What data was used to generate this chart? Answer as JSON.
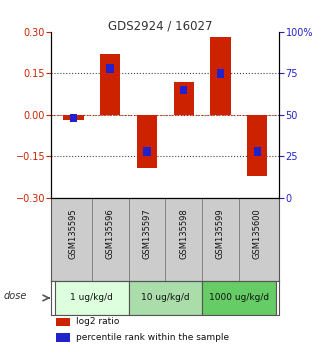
{
  "title": "GDS2924 / 16027",
  "samples": [
    "GSM135595",
    "GSM135596",
    "GSM135597",
    "GSM135598",
    "GSM135599",
    "GSM135600"
  ],
  "log2_ratios": [
    -0.02,
    0.22,
    -0.19,
    0.12,
    0.28,
    -0.22
  ],
  "percentile_ranks": [
    48,
    78,
    28,
    65,
    75,
    28
  ],
  "ylim_left": [
    -0.3,
    0.3
  ],
  "ylim_right": [
    0,
    100
  ],
  "yticks_left": [
    -0.3,
    -0.15,
    0,
    0.15,
    0.3
  ],
  "yticks_right": [
    0,
    25,
    50,
    75,
    100
  ],
  "ytick_labels_right": [
    "0",
    "25",
    "50",
    "75",
    "100%"
  ],
  "red_color": "#cc2200",
  "blue_color": "#2222cc",
  "dose_groups": [
    {
      "label": "1 ug/kg/d",
      "cols": [
        0,
        1
      ],
      "color": "#ddffdd"
    },
    {
      "label": "10 ug/kg/d",
      "cols": [
        2,
        3
      ],
      "color": "#aaddaa"
    },
    {
      "label": "1000 ug/kg/d",
      "cols": [
        4,
        5
      ],
      "color": "#66cc66"
    }
  ],
  "dose_label": "dose",
  "legend_red": "log2 ratio",
  "legend_blue": "percentile rank within the sample",
  "bar_width": 0.55,
  "blue_bar_width": 0.2,
  "dotline_color": "#444444",
  "bg_color": "#ffffff",
  "sample_bg_color": "#cccccc"
}
